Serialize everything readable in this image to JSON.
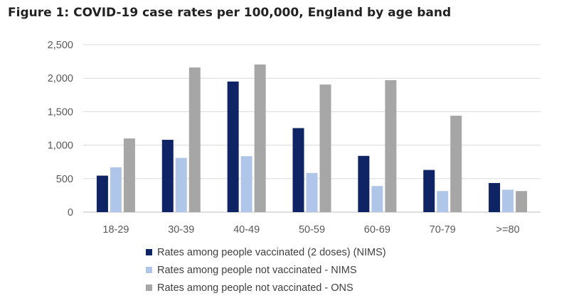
{
  "title": "Figure 1: COVID-19 case rates per 100,000, England by age band",
  "chart_data": {
    "type": "bar",
    "title": "Figure 1: COVID-19 case rates per 100,000, England by age band",
    "xlabel": "",
    "ylabel": "",
    "categories": [
      "18-29",
      "30-39",
      "40-49",
      "50-59",
      "60-69",
      "70-79",
      ">=80"
    ],
    "ylim": [
      0,
      2500
    ],
    "yticks": [
      0,
      500,
      1000,
      1500,
      2000,
      2500
    ],
    "ytick_labels": [
      "0",
      "500",
      "1,000",
      "1,500",
      "2,000",
      "2,500"
    ],
    "grid": true,
    "legend_position": "bottom",
    "series": [
      {
        "name": "Rates among people vaccinated (2 doses) (NIMS)",
        "color": "#0e2464",
        "values": [
          545,
          1080,
          1950,
          1255,
          840,
          630,
          435
        ]
      },
      {
        "name": "Rates among people not vaccinated - NIMS",
        "color": "#afc6e8",
        "values": [
          670,
          810,
          835,
          585,
          390,
          315,
          335
        ]
      },
      {
        "name": "Rates among people not vaccinated - ONS",
        "color": "#a6a6a6",
        "values": [
          1100,
          2160,
          2205,
          1905,
          1970,
          1440,
          315
        ]
      }
    ]
  }
}
